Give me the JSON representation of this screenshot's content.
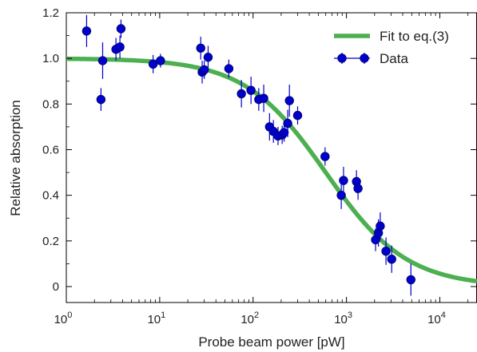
{
  "chart_data": {
    "type": "scatter",
    "xlabel": "Probe beam power [pW]",
    "ylabel": "Relative absorption",
    "x_scale": "log",
    "xlim": [
      1,
      25000
    ],
    "ylim": [
      -0.07,
      1.2
    ],
    "x_ticks": [
      {
        "value": 1,
        "base": "10",
        "exp": "0"
      },
      {
        "value": 10,
        "base": "10",
        "exp": "1"
      },
      {
        "value": 100,
        "base": "10",
        "exp": "2"
      },
      {
        "value": 1000,
        "base": "10",
        "exp": "3"
      },
      {
        "value": 10000,
        "base": "10",
        "exp": "4"
      }
    ],
    "y_ticks": [
      {
        "value": 0,
        "label": "0"
      },
      {
        "value": 0.2,
        "label": "0.2"
      },
      {
        "value": 0.4,
        "label": "0.4"
      },
      {
        "value": 0.6,
        "label": "0.6"
      },
      {
        "value": 0.8,
        "label": "0.8"
      },
      {
        "value": 1.0,
        "label": "1.0"
      },
      {
        "value": 1.2,
        "label": "1.2"
      }
    ],
    "grid": false,
    "legend": {
      "position": "top-right",
      "entries": [
        {
          "label": "Fit to eq.(3)",
          "kind": "line",
          "color": "#4caf50"
        },
        {
          "label": "Data",
          "kind": "marker",
          "color": "#0000cc"
        }
      ]
    },
    "series": [
      {
        "name": "Fit to eq.(3)",
        "kind": "curve",
        "color": "#4caf50",
        "model": {
          "x0": 600,
          "n": 1.0
        },
        "x": [
          1,
          2,
          5,
          10,
          20,
          50,
          100,
          150,
          200,
          300,
          400,
          600,
          800,
          1000,
          1500,
          2000,
          3000,
          5000,
          7000,
          10000,
          15000,
          25000
        ],
        "y": [
          0.998,
          0.997,
          0.992,
          0.984,
          0.968,
          0.923,
          0.857,
          0.8,
          0.75,
          0.667,
          0.6,
          0.5,
          0.429,
          0.375,
          0.286,
          0.231,
          0.167,
          0.107,
          0.079,
          0.057,
          0.038,
          0.023
        ]
      },
      {
        "name": "Data",
        "kind": "points_with_errorbars",
        "color": "#0000cc",
        "x": [
          1.65,
          2.35,
          2.45,
          3.4,
          3.75,
          3.85,
          8.5,
          10.2,
          27.5,
          28.5,
          30,
          33,
          55,
          75,
          95,
          115,
          130,
          150,
          165,
          185,
          205,
          215,
          235,
          245,
          300,
          590,
          880,
          930,
          1280,
          1330,
          2050,
          2200,
          2300,
          2650,
          3050,
          4900
        ],
        "y": [
          1.12,
          0.82,
          0.99,
          1.04,
          1.05,
          1.13,
          0.975,
          0.99,
          1.045,
          0.94,
          0.95,
          1.005,
          0.955,
          0.845,
          0.86,
          0.82,
          0.825,
          0.7,
          0.68,
          0.66,
          0.665,
          0.675,
          0.715,
          0.815,
          0.75,
          0.57,
          0.4,
          0.465,
          0.46,
          0.43,
          0.205,
          0.235,
          0.265,
          0.155,
          0.12,
          0.03
        ],
        "yerr": [
          0.07,
          0.05,
          0.08,
          0.05,
          0.05,
          0.04,
          0.04,
          0.03,
          0.05,
          0.05,
          0.04,
          0.05,
          0.04,
          0.06,
          0.06,
          0.05,
          0.06,
          0.06,
          0.05,
          0.04,
          0.04,
          0.04,
          0.06,
          0.07,
          0.04,
          0.04,
          0.06,
          0.06,
          0.05,
          0.05,
          0.05,
          0.06,
          0.06,
          0.06,
          0.06,
          0.07
        ]
      }
    ]
  }
}
